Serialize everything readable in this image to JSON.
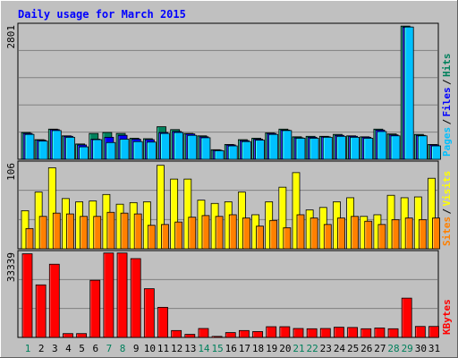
{
  "chart_data": [
    {
      "type": "bar",
      "panel": "pages-files-hits",
      "title": "Daily usage for March 2015",
      "ylabel_max": "2801",
      "ylim": [
        0,
        2801
      ],
      "legend_placement": "right",
      "legend": [
        {
          "label": "Hits",
          "color": "#00805c"
        },
        {
          "label": "Files",
          "color": "#0000ff"
        },
        {
          "label": "Pages",
          "color": "#00c0ff"
        }
      ],
      "categories": [
        "1",
        "2",
        "3",
        "4",
        "5",
        "6",
        "7",
        "8",
        "9",
        "10",
        "11",
        "12",
        "13",
        "14",
        "15",
        "16",
        "17",
        "18",
        "19",
        "20",
        "21",
        "22",
        "23",
        "24",
        "25",
        "26",
        "27",
        "28",
        "29",
        "30",
        "31"
      ],
      "series": [
        {
          "name": "Hits",
          "values": [
            560,
            410,
            630,
            490,
            320,
            540,
            560,
            540,
            440,
            430,
            680,
            620,
            540,
            490,
            200,
            310,
            410,
            440,
            550,
            630,
            470,
            480,
            480,
            520,
            490,
            470,
            630,
            530,
            2780,
            520,
            310
          ]
        },
        {
          "name": "Files",
          "values": [
            540,
            400,
            620,
            480,
            300,
            420,
            460,
            500,
            420,
            410,
            560,
            580,
            530,
            470,
            190,
            300,
            390,
            420,
            540,
            610,
            450,
            460,
            470,
            500,
            480,
            460,
            610,
            510,
            2760,
            500,
            300
          ]
        },
        {
          "name": "Pages",
          "values": [
            520,
            380,
            600,
            460,
            260,
            410,
            350,
            420,
            370,
            360,
            540,
            560,
            500,
            450,
            180,
            280,
            370,
            400,
            520,
            600,
            440,
            440,
            460,
            480,
            460,
            440,
            580,
            490,
            2760,
            490,
            280
          ]
        }
      ]
    },
    {
      "type": "bar",
      "panel": "sites-visits",
      "ylabel_max": "106",
      "ylim": [
        0,
        106
      ],
      "legend_placement": "right",
      "legend": [
        {
          "label": "Visits",
          "color": "#ffff00"
        },
        {
          "label": "Sites",
          "color": "#ff8000"
        }
      ],
      "categories": [
        "1",
        "2",
        "3",
        "4",
        "5",
        "6",
        "7",
        "8",
        "9",
        "10",
        "11",
        "12",
        "13",
        "14",
        "15",
        "16",
        "17",
        "18",
        "19",
        "20",
        "21",
        "22",
        "23",
        "24",
        "25",
        "26",
        "27",
        "28",
        "29",
        "30",
        "31"
      ],
      "series": [
        {
          "name": "Visits",
          "values": [
            47,
            70,
            100,
            62,
            58,
            59,
            67,
            55,
            57,
            58,
            103,
            86,
            86,
            60,
            56,
            58,
            70,
            42,
            58,
            76,
            94,
            48,
            51,
            58,
            63,
            40,
            42,
            66,
            63,
            64,
            87
          ]
        },
        {
          "name": "Sites",
          "values": [
            25,
            40,
            44,
            43,
            40,
            40,
            45,
            44,
            43,
            29,
            30,
            33,
            39,
            41,
            40,
            42,
            38,
            28,
            35,
            26,
            42,
            38,
            30,
            38,
            40,
            34,
            30,
            36,
            38,
            36,
            38
          ]
        }
      ]
    },
    {
      "type": "bar",
      "panel": "kbytes",
      "ylabel_max": "33339",
      "ylim": [
        0,
        33339
      ],
      "legend_placement": "right",
      "legend": [
        {
          "label": "KBytes",
          "color": "#ff0000"
        }
      ],
      "categories": [
        "1",
        "2",
        "3",
        "4",
        "5",
        "6",
        "7",
        "8",
        "9",
        "10",
        "11",
        "12",
        "13",
        "14",
        "15",
        "16",
        "17",
        "18",
        "19",
        "20",
        "21",
        "22",
        "23",
        "24",
        "25",
        "26",
        "27",
        "28",
        "29",
        "30",
        "31"
      ],
      "series": [
        {
          "name": "KBytes",
          "values": [
            32800,
            20600,
            28700,
            1500,
            1500,
            22400,
            33100,
            33100,
            30900,
            19100,
            11800,
            2700,
            1200,
            3500,
            400,
            1900,
            2700,
            2300,
            4200,
            4200,
            3500,
            3400,
            3500,
            4000,
            3900,
            3400,
            3700,
            3400,
            15400,
            4300,
            4300
          ]
        }
      ]
    }
  ],
  "x_axis": {
    "labels": [
      "1",
      "2",
      "3",
      "4",
      "5",
      "6",
      "7",
      "8",
      "9",
      "10",
      "11",
      "12",
      "13",
      "14",
      "15",
      "16",
      "17",
      "18",
      "19",
      "20",
      "21",
      "22",
      "23",
      "24",
      "25",
      "26",
      "27",
      "28",
      "29",
      "30",
      "31"
    ],
    "weekend_days": [
      1,
      7,
      8,
      14,
      15,
      21,
      22,
      28,
      29
    ],
    "weekday_color": "#000000",
    "weekend_color": "#00805c"
  },
  "colors": {
    "panel_bg": "#c0c0c0",
    "outer_bg": "#c0c0c0",
    "title_color": "#0000ff",
    "grid": "#808080"
  }
}
